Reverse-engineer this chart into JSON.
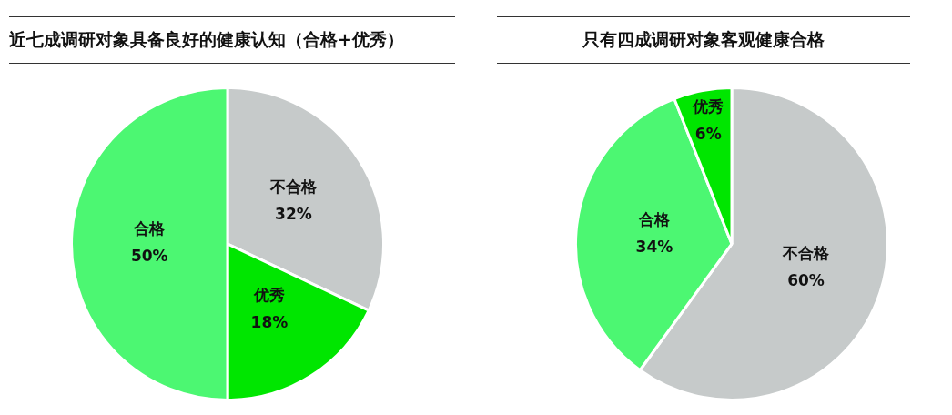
{
  "chart_data": [
    {
      "type": "pie",
      "title": "近七成调研对象具备良好的健康认知（合格+优秀）",
      "categories": [
        "不合格",
        "优秀",
        "合格"
      ],
      "values": [
        32,
        18,
        50
      ],
      "value_labels": [
        "32%",
        "18%",
        "50%"
      ],
      "colors": [
        "#c6caca",
        "#00e600",
        "#4cf772"
      ],
      "legend": false
    },
    {
      "type": "pie",
      "title": "只有四成调研对象客观健康合格",
      "categories": [
        "不合格",
        "合格",
        "优秀"
      ],
      "values": [
        60,
        34,
        6
      ],
      "value_labels": [
        "60%",
        "34%",
        "6%"
      ],
      "colors": [
        "#c6caca",
        "#4cf772",
        "#00e600"
      ],
      "legend": false
    }
  ]
}
